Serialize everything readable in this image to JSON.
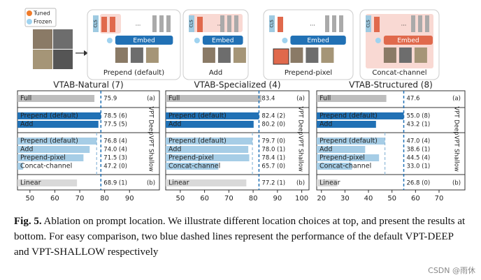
{
  "diagram": {
    "legend": [
      "Tuned",
      "Frozen"
    ],
    "variants": [
      {
        "label": "Prepend (default)",
        "embed": "Embed",
        "cls": "CLS",
        "ellipsis": "..."
      },
      {
        "label": "Add",
        "embed": "Embed",
        "cls": "CLS",
        "ellipsis": "..."
      },
      {
        "label": "Prepend-pixel",
        "embed": "Embed",
        "cls": "CLS",
        "ellipsis": "..."
      },
      {
        "label": "Concat-channel",
        "embed": "Embed",
        "cls": "CLS",
        "ellipsis": "..."
      }
    ]
  },
  "chart_data": [
    {
      "type": "bar",
      "orientation": "horizontal",
      "title": "VTAB-Natural (7)",
      "categories": [
        "Full",
        "Prepend (default)",
        "Add",
        "Prepend (default)",
        "Add",
        "Prepend-pixel",
        "Concat-channel",
        "Linear"
      ],
      "values": [
        75.9,
        78.5,
        77.5,
        76.8,
        74.0,
        71.5,
        47.2,
        68.9
      ],
      "value_labels": [
        "75.9",
        "78.5 (6)",
        "77.5 (5)",
        "76.8 (4)",
        "74.0 (4)",
        "71.5 (3)",
        "47.2 (0)",
        "68.9 (1)"
      ],
      "colors": [
        "#bdbdbd",
        "#2171b5",
        "#2171b5",
        "#a6cde6",
        "#a6cde6",
        "#a6cde6",
        "#a6cde6",
        "#d9d9d9"
      ],
      "group_labels": [
        "(a)",
        "VPT Deep",
        "VPT Shallow",
        "(b)"
      ],
      "xlim": [
        45,
        102
      ],
      "xticks": [
        50,
        60,
        70,
        80,
        90
      ]
    },
    {
      "type": "bar",
      "orientation": "horizontal",
      "title": "VTAB-Specialized (4)",
      "categories": [
        "Full",
        "Prepend (default)",
        "Add",
        "Prepend (default)",
        "Add",
        "Prepend-pixel",
        "Concat-channel",
        "Linear"
      ],
      "values": [
        83.4,
        82.4,
        80.2,
        79.7,
        78.0,
        78.4,
        65.7,
        77.2
      ],
      "value_labels": [
        "83.4",
        "82.4 (2)",
        "80.2 (0)",
        "79.7 (0)",
        "78.0 (1)",
        "78.4 (1)",
        "65.7 (0)",
        "77.2 (1)"
      ],
      "colors": [
        "#bdbdbd",
        "#2171b5",
        "#2171b5",
        "#a6cde6",
        "#a6cde6",
        "#a6cde6",
        "#a6cde6",
        "#d9d9d9"
      ],
      "group_labels": [
        "(a)",
        "VPT Deep",
        "VPT Shallow",
        "(b)"
      ],
      "xlim": [
        44,
        103
      ],
      "xticks": [
        50,
        60,
        70,
        80,
        90,
        100
      ]
    },
    {
      "type": "bar",
      "orientation": "horizontal",
      "title": "VTAB-Structured (8)",
      "categories": [
        "Full",
        "Prepend (default)",
        "Add",
        "Prepend (default)",
        "Add",
        "Prepend-pixel",
        "Concat-channel",
        "Linear"
      ],
      "values": [
        47.6,
        55.0,
        43.2,
        47.0,
        38.6,
        44.5,
        33.0,
        26.8
      ],
      "value_labels": [
        "47.6",
        "55.0 (8)",
        "43.2 (1)",
        "47.0 (4)",
        "38.6 (1)",
        "44.5 (4)",
        "33.0 (1)",
        "26.8 (0)"
      ],
      "colors": [
        "#bdbdbd",
        "#2171b5",
        "#2171b5",
        "#a6cde6",
        "#a6cde6",
        "#a6cde6",
        "#a6cde6",
        "#d9d9d9"
      ],
      "group_labels": [
        "(a)",
        "VPT Deep",
        "VPT Shallow",
        "(b)"
      ],
      "xlim": [
        18,
        81
      ],
      "xticks": [
        20,
        30,
        40,
        50,
        60,
        70
      ]
    }
  ],
  "caption": {
    "figure": "Fig. 5.",
    "text": "Ablation on prompt location. We illustrate different location choices at top, and present the results at bottom. For easy comparison, two blue dashed lines represent the performance of the default VPT-DEEP and VPT-SHALLOW respectively"
  },
  "watermark": "CSDN @雨休"
}
